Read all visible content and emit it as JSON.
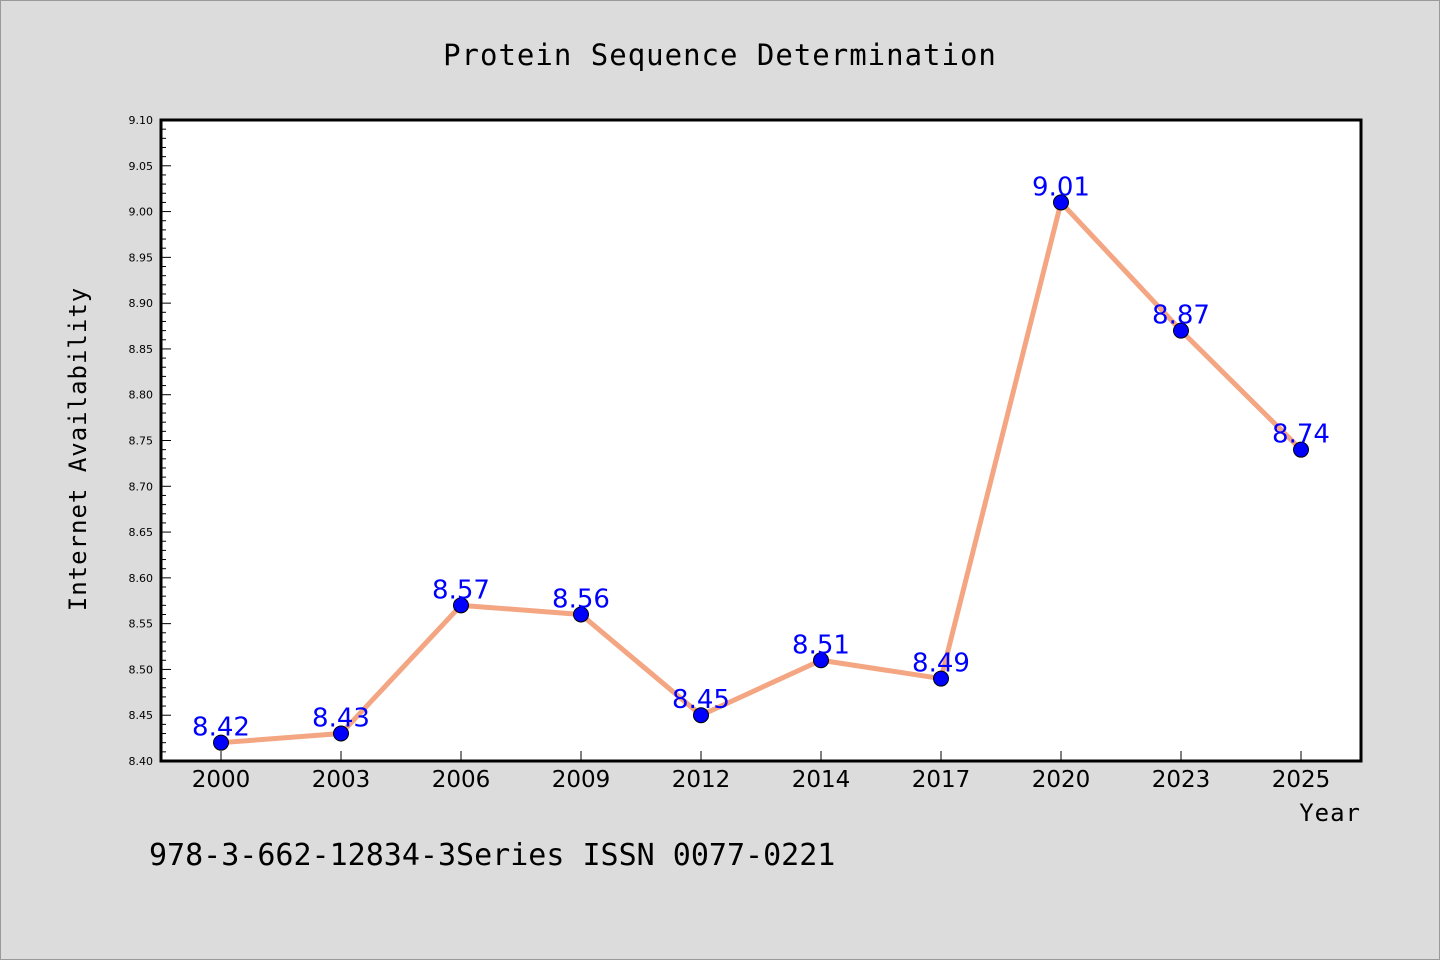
{
  "colors": {
    "background": "#dcdcdc",
    "plot_background": "#ffffff",
    "line": "#f4a582",
    "marker": "#0000ff",
    "data_label": "#0000ff"
  },
  "footnote": "978-3-662-12834-3Series ISSN 0077-0221",
  "chart_data": {
    "type": "line",
    "title": "Protein Sequence Determination",
    "xlabel": "Year",
    "ylabel": "Internet Availability",
    "categories": [
      "2000",
      "2003",
      "2006",
      "2009",
      "2012",
      "2014",
      "2017",
      "2020",
      "2023",
      "2025"
    ],
    "series": [
      {
        "values": [
          8.42,
          8.43,
          8.57,
          8.56,
          8.45,
          8.51,
          8.49,
          9.01,
          8.87,
          8.74
        ]
      }
    ],
    "data_labels": [
      "8.42",
      "8.43",
      "8.57",
      "8.56",
      "8.45",
      "8.51",
      "8.49",
      "9.01",
      "8.87",
      "8.74"
    ],
    "ylim": [
      8.4,
      9.1
    ],
    "yticks": [
      "8.40",
      "8.45",
      "8.50",
      "8.55",
      "8.60",
      "8.65",
      "8.70",
      "8.75",
      "8.80",
      "8.85",
      "8.90",
      "8.95",
      "9.00",
      "9.05",
      "9.10"
    ],
    "grid": false,
    "legend": "none"
  }
}
